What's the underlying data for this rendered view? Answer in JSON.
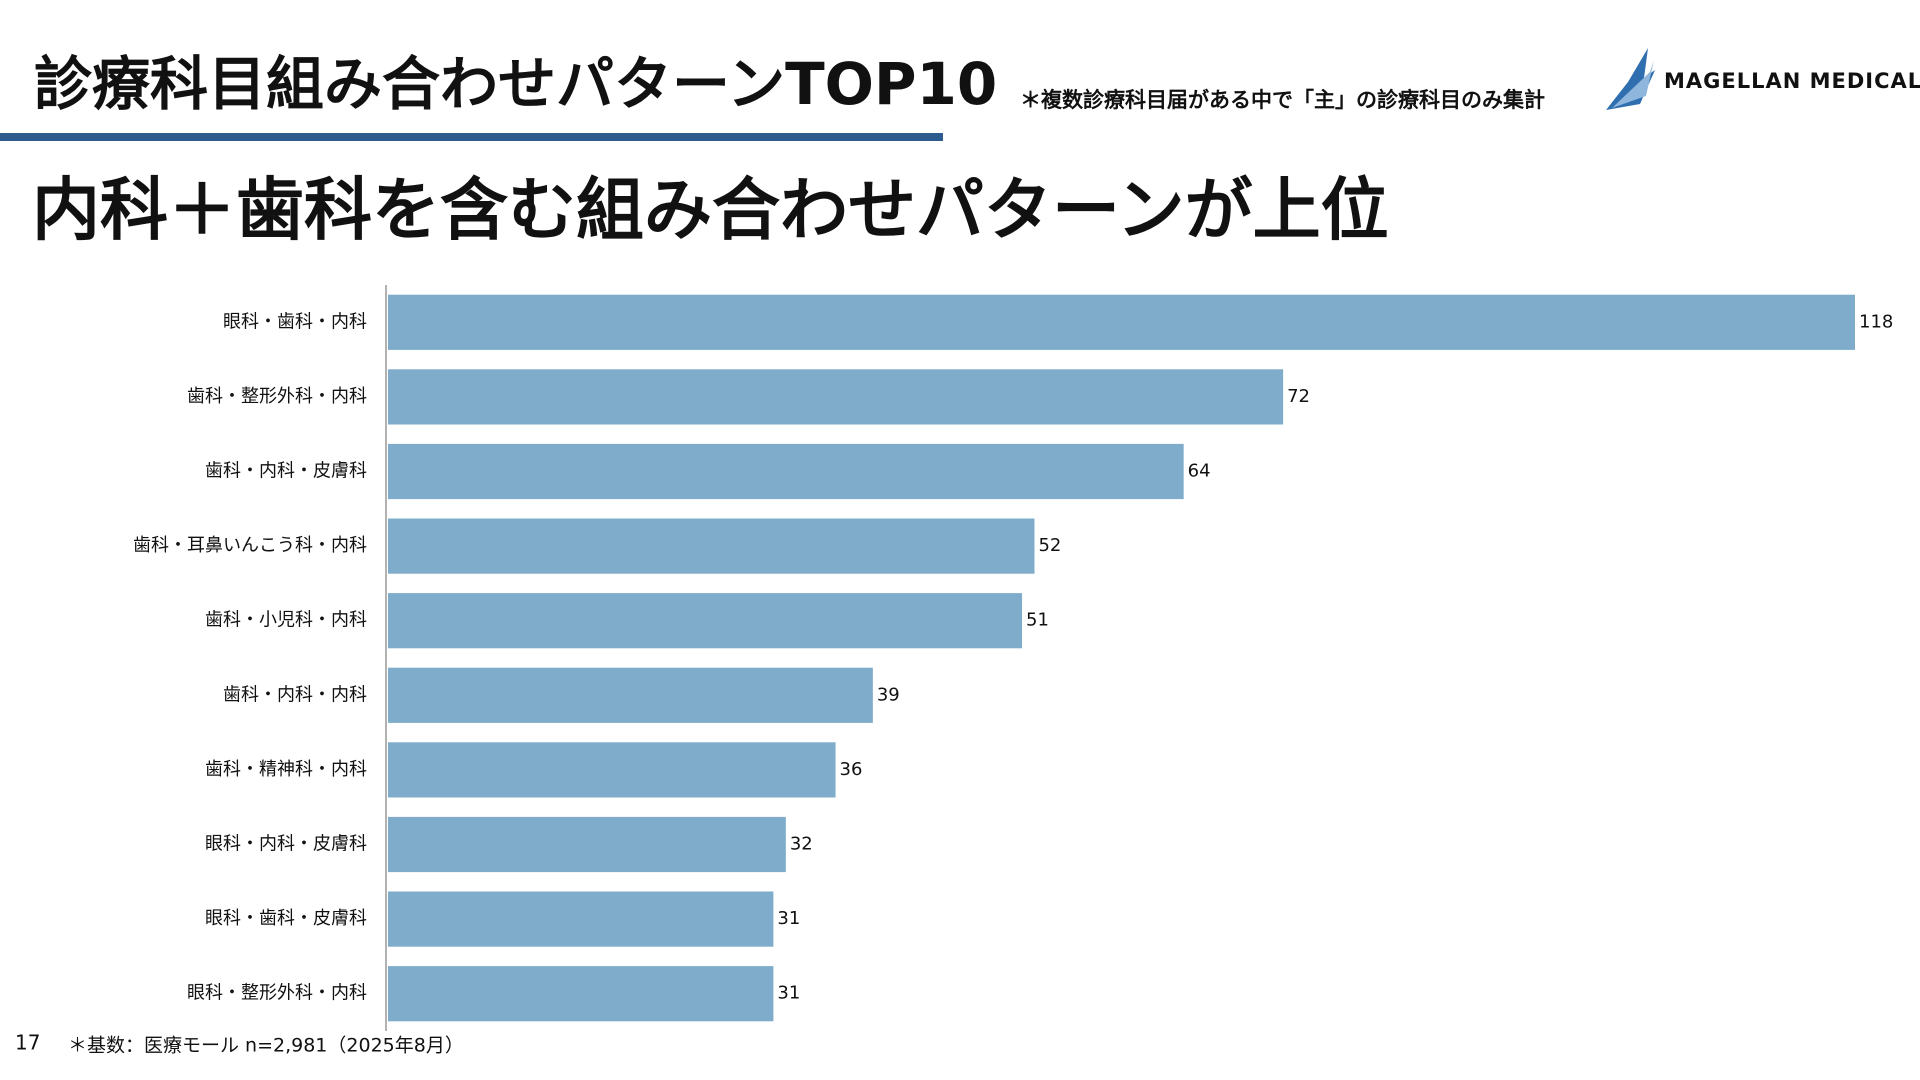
{
  "header": {
    "title": "診療科目組み合わせパターンTOP10",
    "note": "＊複数診療科目届がある中で「主」の診療科目のみ集計",
    "logo": "MAGELLAN MEDICAL"
  },
  "headline": "内科＋歯科を含む組み合わせパターンが上位",
  "chart_data": {
    "type": "bar",
    "orientation": "horizontal",
    "color": "#7facca",
    "categories": [
      "眼科・歯科・内科",
      "歯科・整形外科・内科",
      "歯科・内科・皮膚科",
      "歯科・耳鼻いんこう科・内科",
      "歯科・小児科・内科",
      "歯科・内科・内科",
      "歯科・精神科・内科",
      "眼科・内科・皮膚科",
      "眼科・歯科・皮膚科",
      "眼科・整形外科・内科"
    ],
    "values": [
      118,
      72,
      64,
      52,
      51,
      39,
      36,
      32,
      31,
      31
    ]
  },
  "footer": {
    "page": "17",
    "note": "＊基数：医療モール n=2,981（2025年8月）"
  }
}
